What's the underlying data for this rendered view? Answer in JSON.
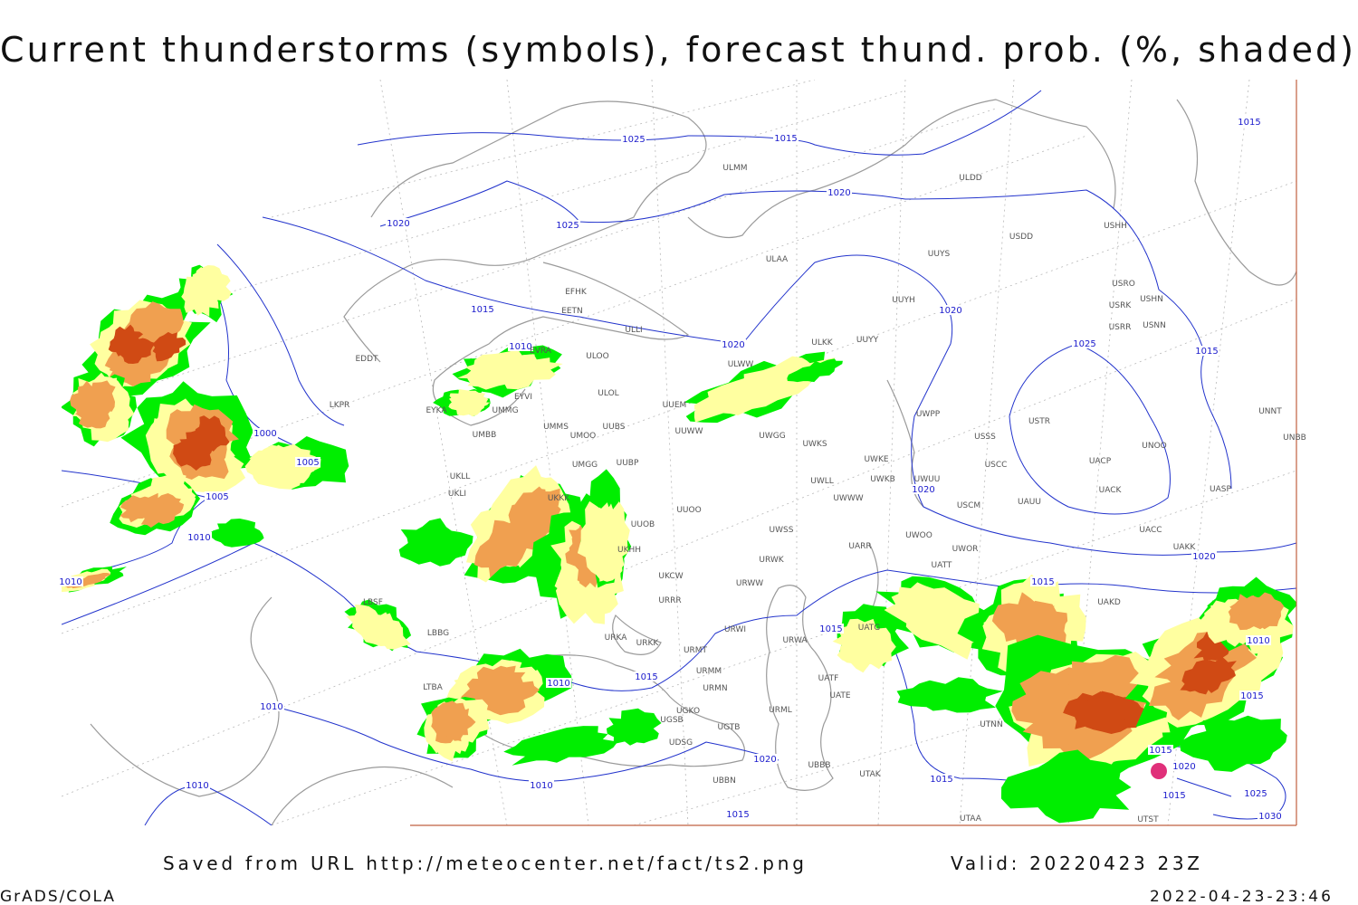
{
  "title": "Current thunderstorms (symbols), forecast thund. prob. (%, shaded)",
  "footer": {
    "source": "Saved from URL http://meteocenter.net/fact/ts2.png",
    "valid": "Valid: 20220423 23Z",
    "software": "GrADS/COLA",
    "timestamp": "2022-04-23-23:46"
  },
  "isobars": [
    1025,
    1015,
    1020,
    1025,
    1020,
    1015,
    1010,
    1020,
    1020,
    1025,
    1015,
    1015,
    1000,
    1005,
    1005,
    1010,
    1010,
    1015,
    1015,
    1010,
    1015,
    1010,
    1020,
    1020,
    1010,
    1015,
    1015,
    1020,
    1015,
    1025,
    1030,
    1020,
    1010,
    1010,
    1015,
    1015
  ],
  "stations": [
    "ULMM",
    "ULDD",
    "USDD",
    "USHH",
    "UUYS",
    "ULAA",
    "EFHK",
    "EETN",
    "ULLI",
    "EVRA",
    "ULOO",
    "ULWW",
    "ULKK",
    "UUYY",
    "UUYH",
    "USRO",
    "USRK",
    "USHN",
    "USRR",
    "USNN",
    "USTR",
    "USSS",
    "USCC",
    "USCM",
    "UAUU",
    "UACK",
    "UACP",
    "UNOO",
    "UASP",
    "UACC",
    "UAKK",
    "UNNT",
    "UNBB",
    "EYVI",
    "UMMG",
    "EYKA",
    "ULOL",
    "UUEM",
    "UMMS",
    "UMOO",
    "UUBS",
    "UMBB",
    "UUWW",
    "UWGG",
    "UWKS",
    "UWKE",
    "UWLL",
    "UWKB",
    "UWUU",
    "UWPP",
    "UWWW",
    "UUBP",
    "UMGG",
    "UKLL",
    "UKLI",
    "UKKK",
    "UUOB",
    "UUOO",
    "UWSS",
    "UWOO",
    "UWOR",
    "UARR",
    "URWK",
    "UKHH",
    "UKCW",
    "URWW",
    "URRR",
    "LBSF",
    "LBBG",
    "URKA",
    "URKK",
    "URMT",
    "URWI",
    "URWA",
    "UATG",
    "UATT",
    "UAKD",
    "UATE",
    "UATF",
    "URMM",
    "URMN",
    "URML",
    "UGKO",
    "UGTB",
    "UGSB",
    "UDSG",
    "UBBB",
    "UBBN",
    "UTAK",
    "UTNN",
    "UTAA",
    "UTST",
    "LKPR",
    "EDDT",
    "LTBA"
  ]
}
